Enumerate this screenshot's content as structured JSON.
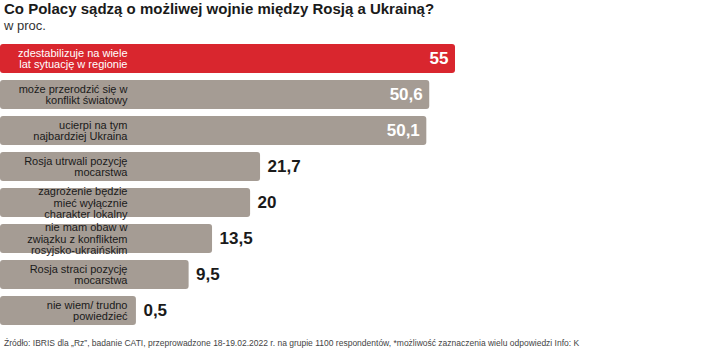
{
  "chart_data": {
    "type": "bar",
    "orientation": "horizontal",
    "title": "Co Polacy sądzą o możliwej wojnie między Rosją a Ukrainą?",
    "subtitle": "w proc.",
    "categories": [
      "zdestabilizuje na wiele lat sytuację w regionie",
      "może przerodzić się w konflikt światowy",
      "ucierpi na tym najbardziej Ukraina",
      "Rosja utrwali pozycję mocarstwa",
      "zagrożenie będzie mieć wyłącznie charakter lokalny",
      "nie mam obaw w związku z konfliktem rosyjsko-ukraińskim",
      "Rosja straci pozycję mocarstwa",
      "nie wiem/ trudno powiedzieć"
    ],
    "values": [
      55,
      50.6,
      50.1,
      21.7,
      20,
      13.5,
      9.5,
      0.5
    ],
    "value_labels": [
      "55",
      "50,6",
      "50,1",
      "21,7",
      "20",
      "13,5",
      "9,5",
      "0,5"
    ],
    "colors": [
      "#d9262e",
      "#a59c94",
      "#a59c94",
      "#a59c94",
      "#a59c94",
      "#a59c94",
      "#a59c94",
      "#a59c94"
    ],
    "data_labels": true,
    "tick_labels": false,
    "caption": "Źródło: IBRIS dla „Rz”, badanie CATI, przeprowadzone 18-19.02.2022 r. na grupie 1100 respondentów, *możliwość zaznaczenia wielu odpowiedzi   Info: K"
  }
}
